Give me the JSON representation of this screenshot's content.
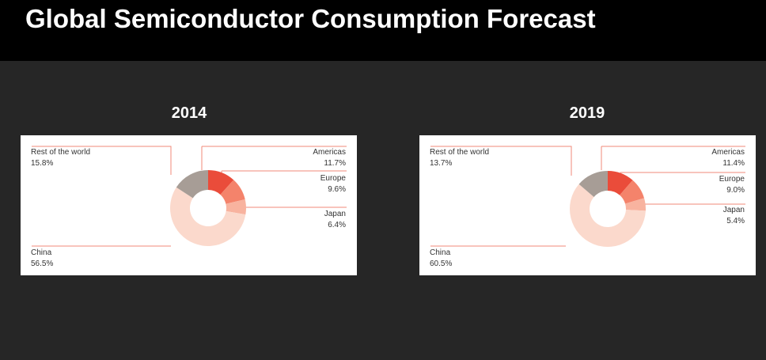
{
  "title": "Global Semiconductor Consumption Forecast",
  "chart_data": [
    {
      "type": "pie",
      "title": "2014",
      "categories": [
        "Americas",
        "Europe",
        "Japan",
        "China",
        "Rest of the world"
      ],
      "values": [
        11.7,
        9.6,
        6.4,
        56.5,
        15.8
      ],
      "labels": [
        "11.7%",
        "9.6%",
        "6.4%",
        "56.5%",
        "15.8%"
      ],
      "colors": [
        "#ea4c3a",
        "#f4836b",
        "#f8b39f",
        "#fbd9cc",
        "#a79d96"
      ]
    },
    {
      "type": "pie",
      "title": "2019",
      "categories": [
        "Americas",
        "Europe",
        "Japan",
        "China",
        "Rest of the world"
      ],
      "values": [
        11.4,
        9.0,
        5.4,
        60.5,
        13.7
      ],
      "labels": [
        "11.4%",
        "9.0%",
        "5.4%",
        "60.5%",
        "13.7%"
      ],
      "colors": [
        "#ea4c3a",
        "#f4836b",
        "#f8b39f",
        "#fbd9cc",
        "#a79d96"
      ]
    }
  ]
}
